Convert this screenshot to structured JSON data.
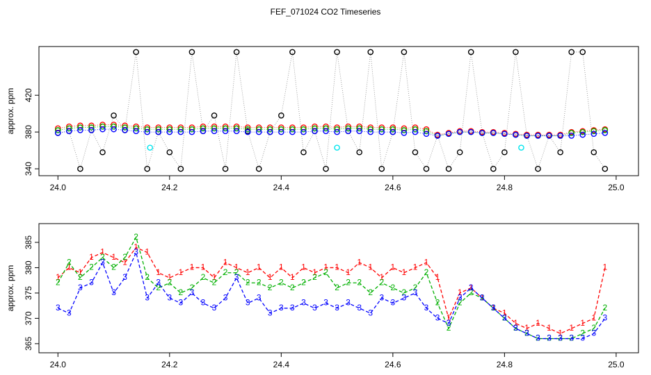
{
  "title": "FEF_071024  CO2 Timeseries",
  "chart_data": [
    {
      "type": "scatter",
      "ylabel": "approx. ppm",
      "xlim": [
        23.966,
        25.04
      ],
      "ylim": [
        332.5,
        473
      ],
      "xticks": [
        {
          "value": 24,
          "label": "24.0"
        },
        24.2,
        24.4,
        24.6,
        24.8,
        {
          "value": 25,
          "label": "25.0"
        }
      ],
      "yticks": [
        340,
        380,
        420
      ],
      "x": [
        24.0,
        24.02,
        24.04,
        24.06,
        24.08,
        24.1,
        24.12,
        24.14,
        24.16,
        24.18,
        24.2,
        24.22,
        24.24,
        24.26,
        24.28,
        24.3,
        24.32,
        24.34,
        24.36,
        24.38,
        24.4,
        24.42,
        24.44,
        24.46,
        24.48,
        24.5,
        24.52,
        24.54,
        24.56,
        24.58,
        24.6,
        24.62,
        24.64,
        24.66,
        24.68,
        24.7,
        24.72,
        24.74,
        24.76,
        24.78,
        24.8,
        24.82,
        24.84,
        24.86,
        24.88,
        24.9,
        24.92,
        24.94,
        24.96,
        24.98
      ],
      "series": [
        {
          "color": "#000000",
          "values": [
            379,
            381,
            340,
            382,
            358,
            398,
            382,
            467,
            340,
            380,
            358,
            340,
            467,
            381,
            398,
            340,
            467,
            381,
            340,
            380,
            398,
            467,
            358,
            381,
            340,
            467,
            381,
            358,
            467,
            340,
            380,
            467,
            358,
            340,
            376,
            340,
            358,
            467,
            379,
            340,
            358,
            467,
            376,
            340,
            376,
            358,
            467,
            467,
            358,
            340
          ]
        },
        {
          "color": "#ff0000",
          "values": [
            384,
            386,
            387,
            387,
            388,
            388,
            387,
            386,
            385,
            385,
            385,
            385,
            385,
            386,
            386,
            386,
            386,
            385,
            385,
            385,
            385,
            385,
            385,
            386,
            386,
            385,
            386,
            386,
            385,
            385,
            385,
            384,
            385,
            383,
            377,
            379,
            381,
            381,
            380,
            380,
            379,
            378,
            377,
            377,
            377,
            377,
            380,
            381,
            382,
            383
          ]
        },
        {
          "color": "#00b000",
          "values": [
            382,
            384,
            385,
            385,
            386,
            386,
            385,
            384,
            383,
            383,
            383,
            383,
            383,
            384,
            384,
            384,
            384,
            383,
            383,
            383,
            383,
            383,
            383,
            384,
            384,
            383,
            384,
            384,
            383,
            383,
            383,
            382,
            383,
            381,
            376,
            378,
            380,
            380,
            379,
            379,
            378,
            377,
            376,
            376,
            376,
            376,
            379,
            380,
            381,
            382
          ]
        },
        {
          "color": "#0000ff",
          "values": [
            379,
            381,
            382,
            382,
            383,
            383,
            382,
            381,
            380,
            380,
            380,
            380,
            380,
            381,
            381,
            381,
            381,
            380,
            380,
            380,
            380,
            380,
            380,
            381,
            381,
            380,
            381,
            381,
            380,
            380,
            380,
            379,
            380,
            378,
            376,
            378,
            380,
            380,
            379,
            379,
            378,
            377,
            376,
            376,
            376,
            376,
            376,
            377,
            378,
            379
          ]
        },
        {
          "color": "#00e5ee",
          "x": [
            24.165,
            24.5,
            24.83
          ],
          "values": [
            363,
            363,
            363
          ]
        }
      ]
    },
    {
      "type": "line",
      "ylabel": "approx. ppm",
      "xlim": [
        23.966,
        25.04
      ],
      "ylim": [
        363.2,
        388.7
      ],
      "xticks": [
        {
          "value": 24,
          "label": "24.0"
        },
        24.2,
        24.4,
        24.6,
        24.8,
        {
          "value": 25,
          "label": "25.0"
        }
      ],
      "yticks": [
        365,
        370,
        375,
        380,
        385
      ],
      "x": [
        24.0,
        24.02,
        24.04,
        24.06,
        24.08,
        24.1,
        24.12,
        24.14,
        24.16,
        24.18,
        24.2,
        24.22,
        24.24,
        24.26,
        24.28,
        24.3,
        24.32,
        24.34,
        24.36,
        24.38,
        24.4,
        24.42,
        24.44,
        24.46,
        24.48,
        24.5,
        24.52,
        24.54,
        24.56,
        24.58,
        24.6,
        24.62,
        24.64,
        24.66,
        24.68,
        24.7,
        24.72,
        24.74,
        24.76,
        24.78,
        24.8,
        24.82,
        24.84,
        24.86,
        24.88,
        24.9,
        24.92,
        24.94,
        24.96,
        24.98
      ],
      "series": [
        {
          "marker": "1",
          "color": "#ff0000",
          "values": [
            378,
            380,
            379,
            382,
            383,
            382,
            381,
            384,
            383,
            379,
            378,
            379,
            380,
            380,
            378,
            381,
            380,
            379,
            380,
            378,
            380,
            378,
            380,
            379,
            380,
            380,
            379,
            381,
            380,
            378,
            380,
            379,
            380,
            381,
            378,
            370,
            375,
            376,
            374,
            372,
            371,
            369,
            368,
            369,
            368,
            367,
            368,
            369,
            370,
            380
          ]
        },
        {
          "marker": "2",
          "color": "#00b000",
          "values": [
            377,
            381,
            378,
            380,
            382,
            380,
            382,
            386,
            378,
            376,
            377,
            375,
            376,
            378,
            377,
            379,
            379,
            377,
            377,
            376,
            377,
            376,
            377,
            378,
            379,
            376,
            377,
            377,
            375,
            377,
            376,
            375,
            376,
            379,
            373,
            368,
            373,
            375,
            374,
            372,
            370,
            368,
            367,
            366,
            366,
            366,
            366,
            367,
            368,
            372
          ]
        },
        {
          "marker": "3",
          "color": "#0000ff",
          "values": [
            372,
            371,
            376,
            377,
            381,
            375,
            378,
            383,
            374,
            377,
            374,
            373,
            375,
            373,
            372,
            374,
            378,
            373,
            374,
            371,
            372,
            372,
            373,
            372,
            373,
            372,
            373,
            372,
            371,
            374,
            373,
            374,
            375,
            372,
            370,
            369,
            374,
            376,
            374,
            372,
            370,
            368,
            367,
            366,
            366,
            366,
            366,
            366,
            367,
            370
          ]
        }
      ]
    }
  ]
}
